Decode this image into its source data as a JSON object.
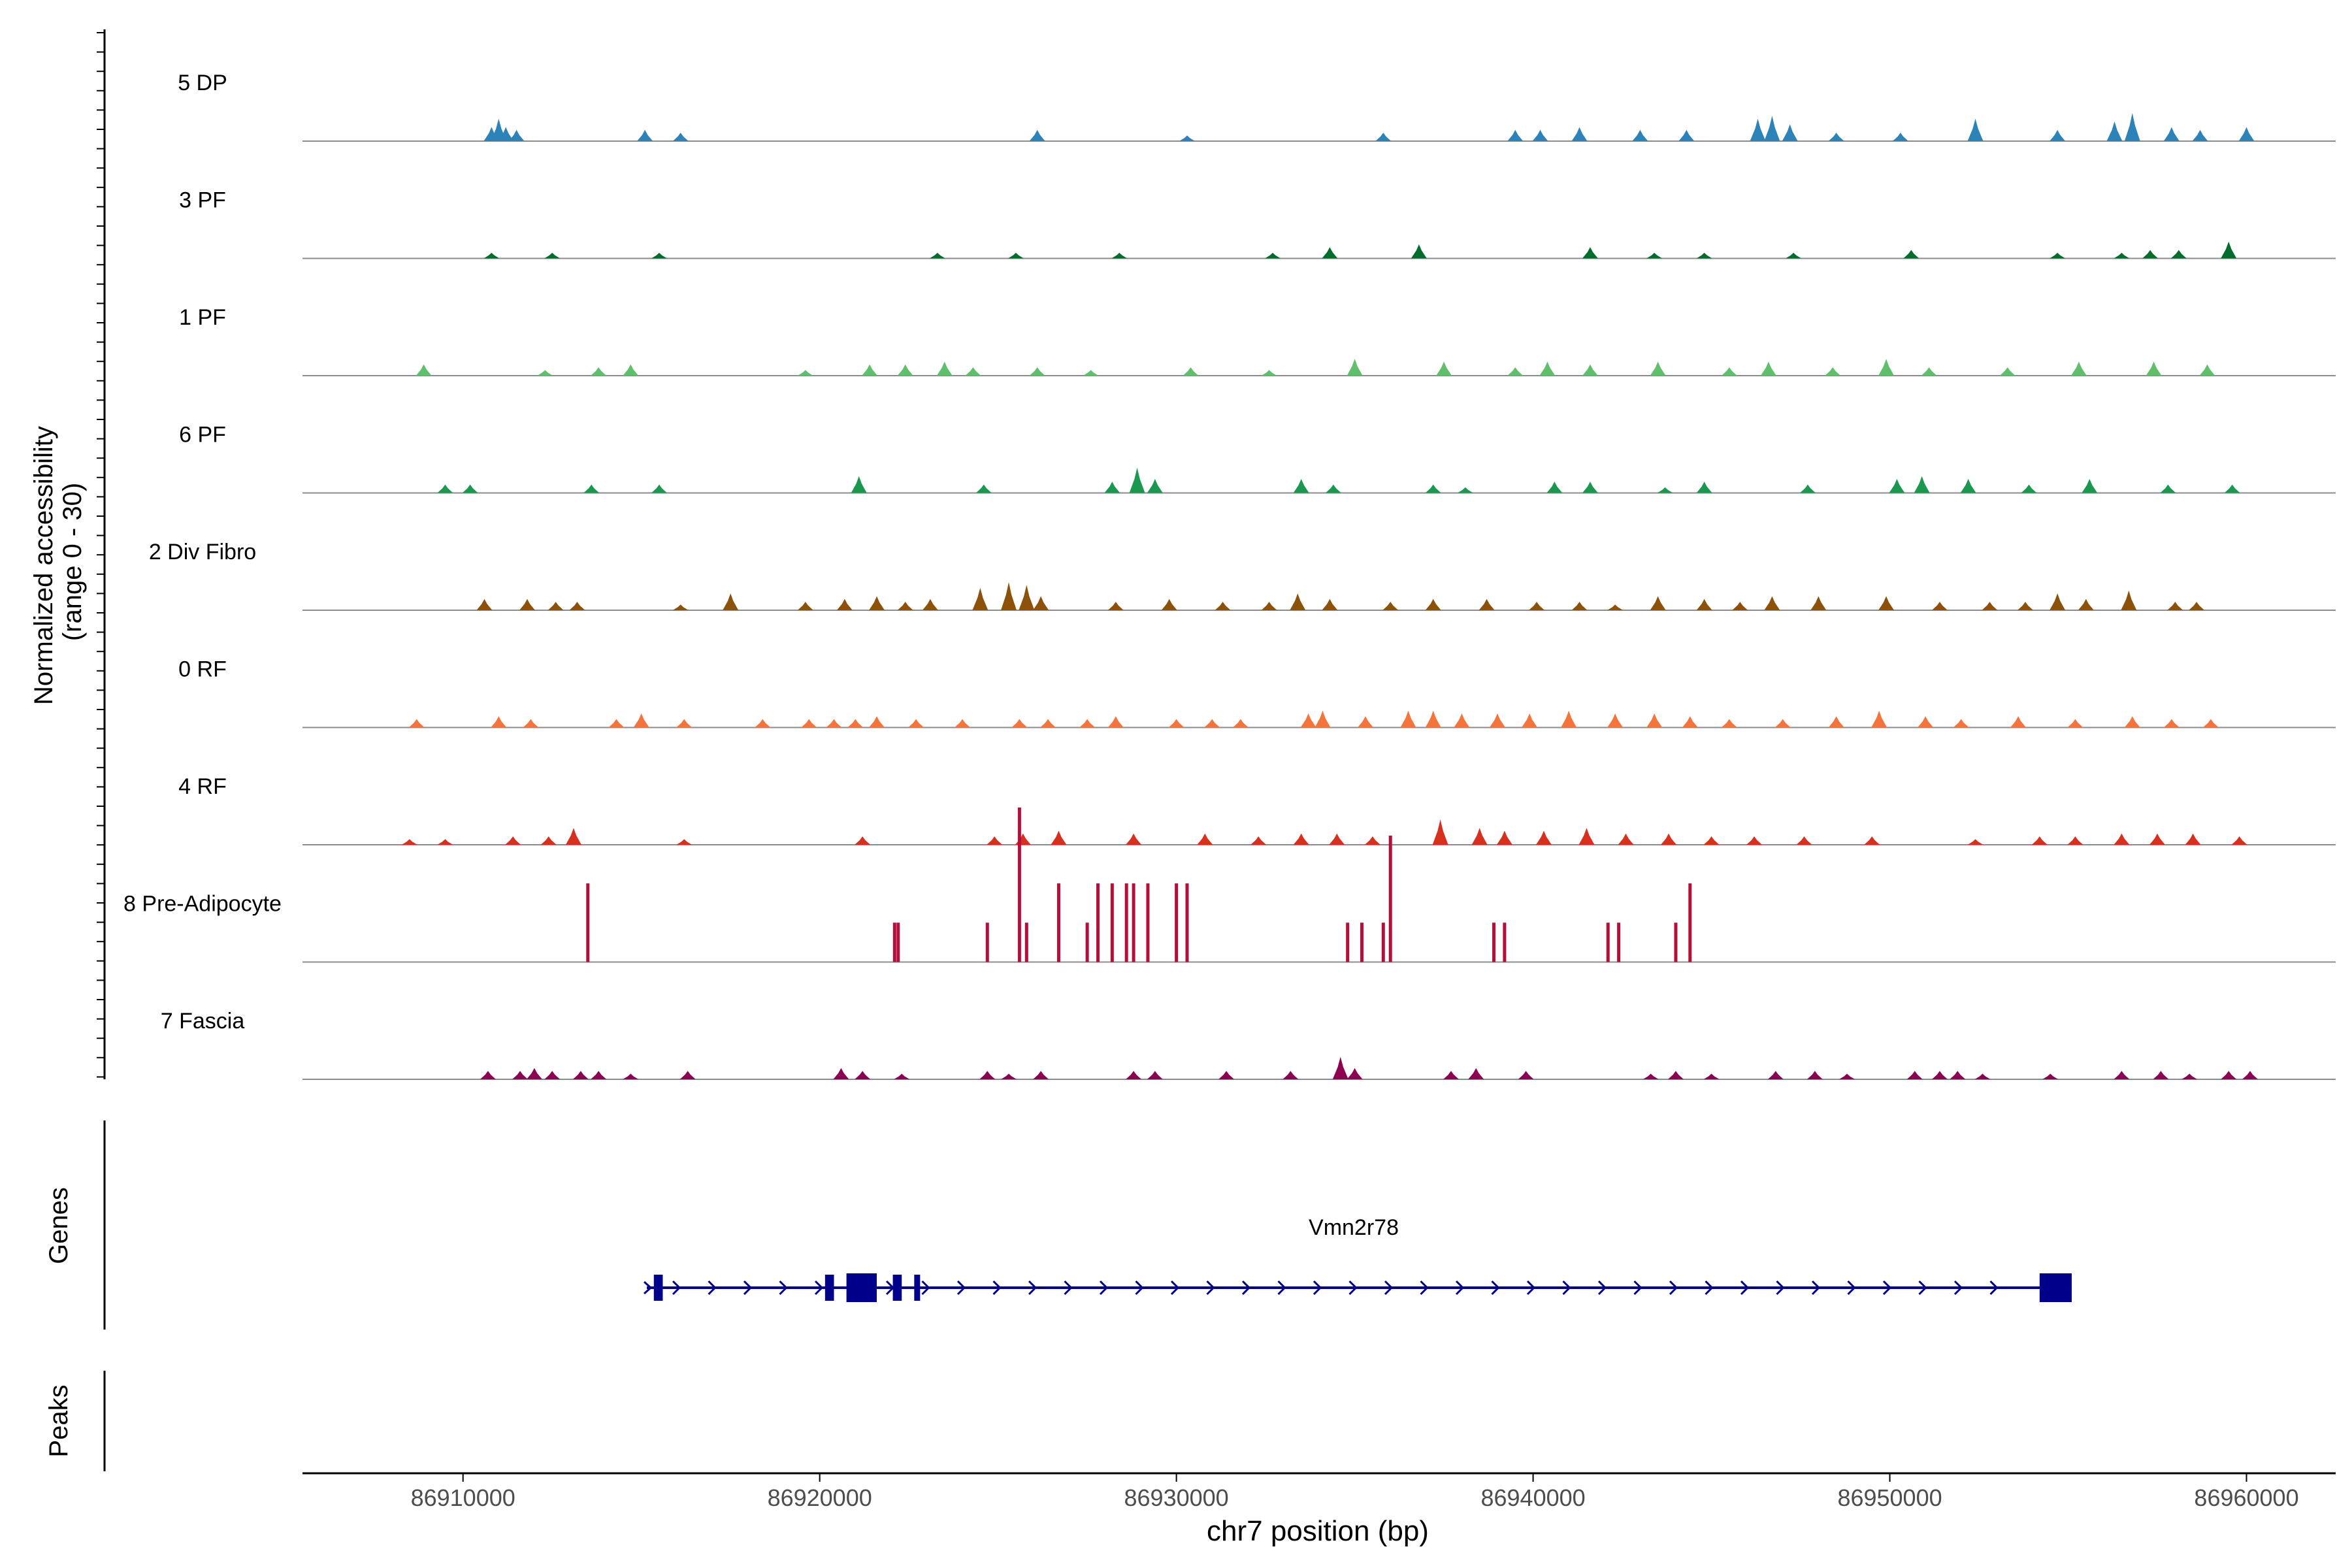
{
  "chart_data": {
    "type": "area",
    "y_axis_label_line1": "Normalized accessibility",
    "y_axis_label_line2": "(range 0 - 30)",
    "ylim": [
      0,
      30
    ],
    "x_axis_label": "chr7 position (bp)",
    "xlim": [
      86905500,
      86962500
    ],
    "x_ticks": [
      86910000,
      86920000,
      86930000,
      86940000,
      86950000,
      86960000
    ],
    "x_tick_labels": [
      "86910000",
      "86920000",
      "86930000",
      "86940000",
      "86950000",
      "86960000"
    ],
    "genes_panel_label": "Genes",
    "peaks_panel_label": "Peaks",
    "series": [
      {
        "name": "5 DP",
        "color": "#2b83ba",
        "peaks": [
          [
            86910800,
            5
          ],
          [
            86911000,
            8
          ],
          [
            86911200,
            5
          ],
          [
            86911500,
            4
          ],
          [
            86915100,
            4
          ],
          [
            86916100,
            3
          ],
          [
            86926100,
            4
          ],
          [
            86930300,
            2
          ],
          [
            86935800,
            3
          ],
          [
            86939500,
            4
          ],
          [
            86940200,
            4
          ],
          [
            86941300,
            5
          ],
          [
            86943000,
            4
          ],
          [
            86944300,
            4
          ],
          [
            86946300,
            8
          ],
          [
            86946700,
            9
          ],
          [
            86947200,
            6
          ],
          [
            86948500,
            3
          ],
          [
            86950300,
            3
          ],
          [
            86952400,
            8
          ],
          [
            86954700,
            4
          ],
          [
            86956300,
            7
          ],
          [
            86956800,
            10
          ],
          [
            86957900,
            5
          ],
          [
            86958700,
            4
          ],
          [
            86960000,
            5
          ]
        ]
      },
      {
        "name": "3 PF",
        "color": "#006d2c",
        "peaks": [
          [
            86910800,
            2
          ],
          [
            86912500,
            2
          ],
          [
            86915500,
            2
          ],
          [
            86923300,
            2
          ],
          [
            86925500,
            2
          ],
          [
            86928400,
            2
          ],
          [
            86932700,
            2
          ],
          [
            86934300,
            4
          ],
          [
            86936800,
            5
          ],
          [
            86941600,
            4
          ],
          [
            86943400,
            2
          ],
          [
            86944800,
            2
          ],
          [
            86947300,
            2
          ],
          [
            86950600,
            3
          ],
          [
            86954700,
            2
          ],
          [
            86956500,
            2
          ],
          [
            86957300,
            3
          ],
          [
            86958100,
            3
          ],
          [
            86959500,
            6
          ]
        ]
      },
      {
        "name": "1 PF",
        "color": "#5fbf6a",
        "peaks": [
          [
            86908900,
            4
          ],
          [
            86912300,
            2
          ],
          [
            86913800,
            3
          ],
          [
            86914700,
            4
          ],
          [
            86919600,
            2
          ],
          [
            86921400,
            4
          ],
          [
            86922400,
            4
          ],
          [
            86923500,
            5
          ],
          [
            86924300,
            3
          ],
          [
            86926100,
            3
          ],
          [
            86927600,
            2
          ],
          [
            86930400,
            3
          ],
          [
            86932600,
            2
          ],
          [
            86935000,
            6
          ],
          [
            86937500,
            5
          ],
          [
            86939500,
            3
          ],
          [
            86940400,
            5
          ],
          [
            86941600,
            4
          ],
          [
            86943500,
            5
          ],
          [
            86945500,
            3
          ],
          [
            86946600,
            5
          ],
          [
            86948400,
            3
          ],
          [
            86949900,
            6
          ],
          [
            86951100,
            3
          ],
          [
            86953300,
            3
          ],
          [
            86955300,
            5
          ],
          [
            86957400,
            5
          ],
          [
            86958900,
            4
          ]
        ]
      },
      {
        "name": "6 PF",
        "color": "#1a9850",
        "peaks": [
          [
            86909500,
            3
          ],
          [
            86910200,
            3
          ],
          [
            86913600,
            3
          ],
          [
            86915500,
            3
          ],
          [
            86921100,
            6
          ],
          [
            86924600,
            3
          ],
          [
            86928200,
            4
          ],
          [
            86928900,
            9
          ],
          [
            86929400,
            5
          ],
          [
            86933500,
            5
          ],
          [
            86934400,
            3
          ],
          [
            86937200,
            3
          ],
          [
            86938100,
            2
          ],
          [
            86940600,
            4
          ],
          [
            86941600,
            4
          ],
          [
            86943700,
            2
          ],
          [
            86944800,
            4
          ],
          [
            86947700,
            3
          ],
          [
            86950200,
            5
          ],
          [
            86950900,
            6
          ],
          [
            86952200,
            5
          ],
          [
            86953900,
            3
          ],
          [
            86955600,
            5
          ],
          [
            86957800,
            3
          ],
          [
            86959600,
            3
          ]
        ]
      },
      {
        "name": "2 Div Fibro",
        "color": "#8c510a",
        "peaks": [
          [
            86910600,
            4
          ],
          [
            86911800,
            4
          ],
          [
            86912600,
            3
          ],
          [
            86913200,
            3
          ],
          [
            86916100,
            2
          ],
          [
            86917500,
            6
          ],
          [
            86919600,
            3
          ],
          [
            86920700,
            4
          ],
          [
            86921600,
            5
          ],
          [
            86922400,
            3
          ],
          [
            86923100,
            4
          ],
          [
            86924500,
            8
          ],
          [
            86925300,
            10
          ],
          [
            86925800,
            9
          ],
          [
            86926200,
            5
          ],
          [
            86928300,
            3
          ],
          [
            86929800,
            4
          ],
          [
            86931300,
            3
          ],
          [
            86932600,
            3
          ],
          [
            86933400,
            6
          ],
          [
            86934300,
            4
          ],
          [
            86936000,
            3
          ],
          [
            86937200,
            4
          ],
          [
            86938700,
            4
          ],
          [
            86940100,
            3
          ],
          [
            86941300,
            3
          ],
          [
            86942300,
            2
          ],
          [
            86943500,
            5
          ],
          [
            86944800,
            4
          ],
          [
            86945800,
            3
          ],
          [
            86946700,
            5
          ],
          [
            86948000,
            5
          ],
          [
            86949900,
            5
          ],
          [
            86951400,
            3
          ],
          [
            86952800,
            3
          ],
          [
            86953800,
            3
          ],
          [
            86954700,
            6
          ],
          [
            86955500,
            4
          ],
          [
            86956700,
            7
          ],
          [
            86958000,
            3
          ],
          [
            86958600,
            3
          ]
        ]
      },
      {
        "name": "0 RF",
        "color": "#f4743b",
        "peaks": [
          [
            86908700,
            3
          ],
          [
            86911000,
            4
          ],
          [
            86911900,
            3
          ],
          [
            86914300,
            3
          ],
          [
            86915000,
            5
          ],
          [
            86916200,
            3
          ],
          [
            86918400,
            3
          ],
          [
            86919700,
            3
          ],
          [
            86920400,
            3
          ],
          [
            86921000,
            3
          ],
          [
            86921600,
            4
          ],
          [
            86922700,
            3
          ],
          [
            86924000,
            3
          ],
          [
            86925600,
            3
          ],
          [
            86926400,
            3
          ],
          [
            86927500,
            3
          ],
          [
            86928300,
            4
          ],
          [
            86930000,
            3
          ],
          [
            86931000,
            3
          ],
          [
            86931800,
            3
          ],
          [
            86933700,
            5
          ],
          [
            86934100,
            6
          ],
          [
            86935300,
            4
          ],
          [
            86936500,
            6
          ],
          [
            86937200,
            6
          ],
          [
            86938000,
            5
          ],
          [
            86939000,
            5
          ],
          [
            86939900,
            5
          ],
          [
            86941000,
            6
          ],
          [
            86942300,
            5
          ],
          [
            86943400,
            5
          ],
          [
            86944400,
            4
          ],
          [
            86945500,
            3
          ],
          [
            86947000,
            3
          ],
          [
            86948500,
            4
          ],
          [
            86949700,
            6
          ],
          [
            86951000,
            4
          ],
          [
            86952000,
            3
          ],
          [
            86953600,
            4
          ],
          [
            86955200,
            3
          ],
          [
            86956800,
            4
          ],
          [
            86957900,
            3
          ],
          [
            86959000,
            3
          ]
        ]
      },
      {
        "name": "4 RF",
        "color": "#d7301f",
        "peaks": [
          [
            86908500,
            2
          ],
          [
            86909500,
            2
          ],
          [
            86911400,
            3
          ],
          [
            86912400,
            3
          ],
          [
            86913100,
            6
          ],
          [
            86916200,
            2
          ],
          [
            86921200,
            3
          ],
          [
            86924900,
            3
          ],
          [
            86925700,
            4
          ],
          [
            86926700,
            5
          ],
          [
            86928800,
            4
          ],
          [
            86930800,
            4
          ],
          [
            86932300,
            3
          ],
          [
            86933500,
            4
          ],
          [
            86934500,
            4
          ],
          [
            86935500,
            3
          ],
          [
            86937400,
            9
          ],
          [
            86938500,
            6
          ],
          [
            86939200,
            5
          ],
          [
            86940300,
            5
          ],
          [
            86941500,
            6
          ],
          [
            86942600,
            4
          ],
          [
            86943800,
            4
          ],
          [
            86945000,
            3
          ],
          [
            86946200,
            3
          ],
          [
            86947600,
            3
          ],
          [
            86949500,
            3
          ],
          [
            86952400,
            2
          ],
          [
            86954200,
            3
          ],
          [
            86955200,
            3
          ],
          [
            86956500,
            4
          ],
          [
            86957500,
            4
          ],
          [
            86958500,
            4
          ],
          [
            86959800,
            3
          ]
        ]
      },
      {
        "name": "8 Pre-Adipocyte",
        "color": "#b30f3a",
        "peaks": [
          [
            86913500,
            28
          ],
          [
            86922100,
            14
          ],
          [
            86922200,
            14
          ],
          [
            86924700,
            14
          ],
          [
            86925600,
            55
          ],
          [
            86925800,
            14
          ],
          [
            86926700,
            28
          ],
          [
            86927500,
            14
          ],
          [
            86927800,
            28
          ],
          [
            86928200,
            28
          ],
          [
            86928600,
            28
          ],
          [
            86928800,
            28
          ],
          [
            86929200,
            28
          ],
          [
            86930000,
            28
          ],
          [
            86930300,
            28
          ],
          [
            86934800,
            14
          ],
          [
            86935200,
            14
          ],
          [
            86935800,
            14
          ],
          [
            86936000,
            45
          ],
          [
            86938900,
            14
          ],
          [
            86939200,
            14
          ],
          [
            86942100,
            14
          ],
          [
            86942400,
            14
          ],
          [
            86944000,
            14
          ],
          [
            86944400,
            28
          ]
        ]
      },
      {
        "name": "7 Fascia",
        "color": "#8e0152",
        "peaks": [
          [
            86910700,
            3
          ],
          [
            86911600,
            3
          ],
          [
            86912000,
            4
          ],
          [
            86912500,
            3
          ],
          [
            86913300,
            3
          ],
          [
            86913800,
            3
          ],
          [
            86914700,
            2
          ],
          [
            86916300,
            3
          ],
          [
            86920600,
            4
          ],
          [
            86921200,
            3
          ],
          [
            86922300,
            2
          ],
          [
            86924700,
            3
          ],
          [
            86925300,
            2
          ],
          [
            86926200,
            3
          ],
          [
            86928800,
            3
          ],
          [
            86929400,
            3
          ],
          [
            86931400,
            3
          ],
          [
            86933200,
            3
          ],
          [
            86934600,
            8
          ],
          [
            86935000,
            4
          ],
          [
            86937700,
            3
          ],
          [
            86938400,
            4
          ],
          [
            86939800,
            3
          ],
          [
            86943300,
            2
          ],
          [
            86944000,
            3
          ],
          [
            86945000,
            2
          ],
          [
            86946800,
            3
          ],
          [
            86947900,
            3
          ],
          [
            86948800,
            2
          ],
          [
            86950700,
            3
          ],
          [
            86951400,
            3
          ],
          [
            86951900,
            3
          ],
          [
            86952600,
            2
          ],
          [
            86954500,
            2
          ],
          [
            86956500,
            3
          ],
          [
            86957600,
            3
          ],
          [
            86958400,
            2
          ],
          [
            86959500,
            3
          ],
          [
            86960100,
            3
          ]
        ]
      }
    ],
    "gene": {
      "name": "Vmn2r78",
      "color": "#00008b",
      "start": 86915300,
      "end": 86955100,
      "strand": "+",
      "exons": [
        [
          86915350,
          86915600
        ],
        [
          86920150,
          86920400
        ],
        [
          86920750,
          86921600
        ],
        [
          86922050,
          86922300
        ],
        [
          86922650,
          86922800
        ],
        [
          86954200,
          86955100
        ]
      ]
    }
  }
}
